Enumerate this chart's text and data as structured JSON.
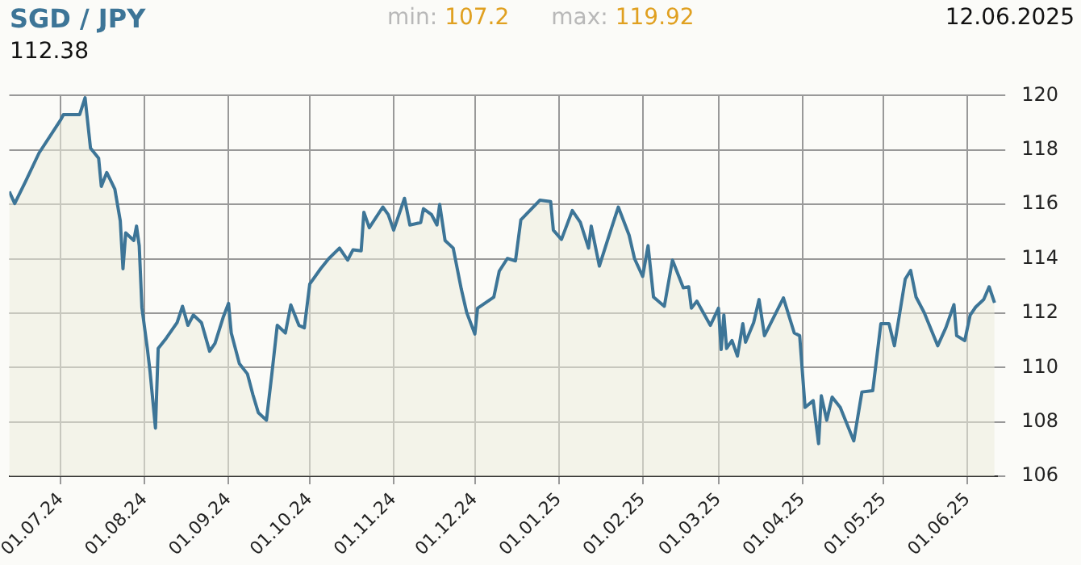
{
  "chart_data": {
    "type": "area",
    "title": "SGD / JPY",
    "annotations": [
      "min: 107.2",
      "max: 119.92",
      "12.06.2025",
      "112.38"
    ],
    "x": [
      "2024-06-12",
      "2024-06-14",
      "2024-06-18",
      "2024-06-23",
      "2024-07-01",
      "2024-07-02",
      "2024-07-08",
      "2024-07-10",
      "2024-07-12",
      "2024-07-15",
      "2024-07-16",
      "2024-07-18",
      "2024-07-21",
      "2024-07-23",
      "2024-07-24",
      "2024-07-25",
      "2024-07-28",
      "2024-07-29",
      "2024-07-30",
      "2024-07-31",
      "2024-08-02",
      "2024-08-03",
      "2024-08-05",
      "2024-08-06",
      "2024-08-09",
      "2024-08-13",
      "2024-08-15",
      "2024-08-17",
      "2024-08-19",
      "2024-08-22",
      "2024-08-25",
      "2024-08-27",
      "2024-08-30",
      "2024-09-01",
      "2024-09-02",
      "2024-09-05",
      "2024-09-08",
      "2024-09-10",
      "2024-09-12",
      "2024-09-15",
      "2024-09-17",
      "2024-09-19",
      "2024-09-22",
      "2024-09-24",
      "2024-09-27",
      "2024-09-29",
      "2024-10-01",
      "2024-10-05",
      "2024-10-08",
      "2024-10-12",
      "2024-10-15",
      "2024-10-17",
      "2024-10-20",
      "2024-10-21",
      "2024-10-23",
      "2024-10-28",
      "2024-10-30",
      "2024-11-01",
      "2024-11-05",
      "2024-11-07",
      "2024-11-11",
      "2024-11-12",
      "2024-11-15",
      "2024-11-17",
      "2024-11-18",
      "2024-11-20",
      "2024-11-23",
      "2024-11-26",
      "2024-11-28",
      "2024-12-01",
      "2024-12-02",
      "2024-12-08",
      "2024-12-10",
      "2024-12-13",
      "2024-12-16",
      "2024-12-18",
      "2024-12-25",
      "2024-12-29",
      "2024-12-30",
      "2025-01-02",
      "2025-01-06",
      "2025-01-09",
      "2025-01-12",
      "2025-01-13",
      "2025-01-16",
      "2025-01-19",
      "2025-01-23",
      "2025-01-27",
      "2025-01-29",
      "2025-02-01",
      "2025-02-03",
      "2025-02-05",
      "2025-02-09",
      "2025-02-12",
      "2025-02-16",
      "2025-02-18",
      "2025-02-19",
      "2025-02-21",
      "2025-02-26",
      "2025-03-01",
      "2025-03-02",
      "2025-03-03",
      "2025-03-04",
      "2025-03-06",
      "2025-03-08",
      "2025-03-10",
      "2025-03-11",
      "2025-03-14",
      "2025-03-16",
      "2025-03-18",
      "2025-03-25",
      "2025-03-29",
      "2025-03-31",
      "2025-04-02",
      "2025-04-05",
      "2025-04-07",
      "2025-04-08",
      "2025-04-10",
      "2025-04-12",
      "2025-04-15",
      "2025-04-20",
      "2025-04-23",
      "2025-04-27",
      "2025-04-30",
      "2025-05-03",
      "2025-05-05",
      "2025-05-07",
      "2025-05-09",
      "2025-05-11",
      "2025-05-13",
      "2025-05-16",
      "2025-05-21",
      "2025-05-24",
      "2025-05-27",
      "2025-05-28",
      "2025-05-31",
      "2025-06-02",
      "2025-06-04",
      "2025-06-07",
      "2025-06-09",
      "2025-06-11"
    ],
    "series": [
      {
        "color": "#3d7597",
        "values": [
          116.47,
          116.03,
          116.84,
          117.89,
          119.11,
          119.3,
          119.3,
          119.92,
          118.07,
          117.7,
          116.66,
          117.17,
          116.56,
          115.39,
          113.63,
          114.95,
          114.67,
          115.2,
          114.48,
          112.2,
          110.7,
          109.85,
          107.77,
          110.7,
          111.08,
          111.65,
          112.25,
          111.55,
          111.93,
          111.65,
          110.6,
          110.89,
          111.84,
          112.36,
          111.27,
          110.14,
          109.76,
          109.0,
          108.34,
          108.06,
          109.76,
          111.55,
          111.27,
          112.3,
          111.55,
          111.46,
          113.07,
          113.63,
          114.0,
          114.39,
          113.95,
          114.33,
          114.29,
          115.71,
          115.14,
          115.9,
          115.62,
          115.05,
          116.22,
          115.24,
          115.33,
          115.84,
          115.62,
          115.24,
          116.0,
          114.67,
          114.39,
          112.88,
          112.02,
          111.23,
          112.18,
          112.59,
          113.54,
          114.01,
          113.92,
          115.43,
          116.15,
          116.1,
          115.05,
          114.71,
          115.77,
          115.33,
          114.39,
          115.2,
          113.73,
          114.67,
          115.9,
          114.86,
          114.0,
          113.35,
          114.48,
          112.59,
          112.25,
          113.95,
          112.93,
          112.97,
          112.18,
          112.44,
          111.55,
          112.18,
          110.66,
          111.93,
          110.7,
          110.99,
          110.42,
          111.61,
          110.93,
          111.65,
          112.5,
          111.17,
          112.56,
          111.27,
          111.17,
          108.53,
          108.78,
          107.2,
          108.96,
          108.06,
          108.91,
          108.53,
          107.3,
          109.1,
          109.15,
          111.61,
          111.61,
          110.8,
          112.02,
          113.25,
          113.57,
          112.59,
          112.02,
          110.8,
          111.46,
          112.31,
          111.17,
          110.99,
          111.93,
          112.22,
          112.5,
          112.97,
          112.38
        ]
      }
    ],
    "xlim": [
      "2024-06-12",
      "2025-06-12"
    ],
    "xticks": [
      {
        "value": "2024-07-01",
        "label": "01.07.24"
      },
      {
        "value": "2024-08-01",
        "label": "01.08.24"
      },
      {
        "value": "2024-09-01",
        "label": "01.09.24"
      },
      {
        "value": "2024-10-01",
        "label": "01.10.24"
      },
      {
        "value": "2024-11-01",
        "label": "01.11.24"
      },
      {
        "value": "2024-12-01",
        "label": "01.12.24"
      },
      {
        "value": "2025-01-01",
        "label": "01.01.25"
      },
      {
        "value": "2025-02-01",
        "label": "01.02.25"
      },
      {
        "value": "2025-03-01",
        "label": "01.03.25"
      },
      {
        "value": "2025-04-01",
        "label": "01.04.25"
      },
      {
        "value": "2025-05-01",
        "label": "01.05.25"
      },
      {
        "value": "2025-06-01",
        "label": "01.06.25"
      }
    ],
    "ylim": [
      106,
      120
    ],
    "yticks": [
      106,
      108,
      110,
      112,
      114,
      116,
      118,
      120
    ],
    "grid": true,
    "legend": false,
    "marker": "none",
    "line_style": "solid"
  }
}
